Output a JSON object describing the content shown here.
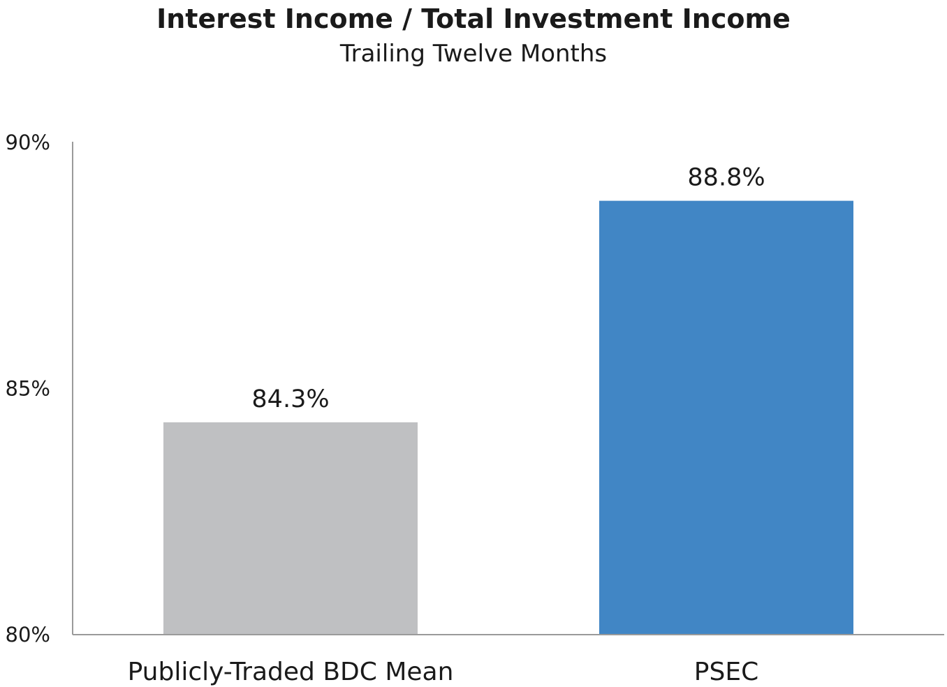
{
  "chart_data": {
    "type": "bar",
    "title": "Interest Income / Total Investment Income",
    "subtitle": "Trailing Twelve Months",
    "categories": [
      "Publicly-Traded BDC Mean",
      "PSEC"
    ],
    "values": [
      84.3,
      88.8
    ],
    "data_labels": [
      "84.3%",
      "88.8%"
    ],
    "colors": [
      "#bfc0c2",
      "#4186c5"
    ],
    "xlabel": "",
    "ylabel": "",
    "ylim": [
      80,
      90
    ],
    "yticks": [
      80,
      85,
      90
    ],
    "ytick_labels": [
      "80%",
      "85%",
      "90%"
    ],
    "grid": false,
    "legend": "none",
    "axis_color": "#9a9a9a"
  }
}
